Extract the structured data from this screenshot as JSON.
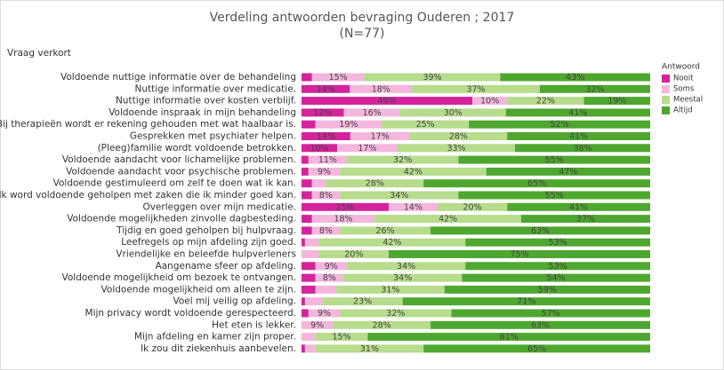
{
  "chart_data": {
    "type": "stacked_bar_horizontal",
    "title": "Verdeling antwoorden bevraging Ouderen ;  2017",
    "subtitle": "(N=77)",
    "y_label": "Vraag verkort",
    "legend_title": "Antwoord",
    "legend_position": "right",
    "categories": [
      "Voldoende nuttige informatie over de behandeling",
      "Nuttige informatie over medicatie.",
      "Nuttige informatie over kosten verblijf.",
      "Voldoende inspraak in mijn behandeling",
      "Bij therapieën wordt er rekening gehouden met wat haalbaar is.",
      "Gesprekken met psychiater helpen.",
      "(Pleeg)familie wordt voldoende betrokken.",
      "Voldoende aandacht voor lichamelijke problemen.",
      "Voldoende aandacht voor psychische problemen.",
      "Voldoende gestimuleerd om zelf te doen wat ik kan.",
      "Ik word voldoende geholpen met zaken die ik minder goed kan.",
      "Overleggen over mijn medicatie.",
      "Voldoende mogelijkheden zinvolle dagbesteding.",
      "Tijdig en goed geholpen bij hulpvraag.",
      "Leefregels op mijn afdeling zijn goed.",
      "Vriendelijke en beleefde hulpverleners",
      "Aangename sfeer op afdeling.",
      "Voldoende mogelijkheid om bezoek te ontvangen.",
      "Voldoende mogelijkheid om alleen te zijn.",
      "Voel mij veilig op afdeling.",
      "Mijn privacy wordt voldoende gerespecteerd.",
      "Het eten is lekker.",
      "Mijn afdeling en kamer zijn proper.",
      "Ik zou dit ziekenhuis aanbevelen."
    ],
    "series": [
      {
        "name": "Nooit",
        "color": "#d4239c",
        "values": [
          3,
          14,
          49,
          12,
          4,
          14,
          10,
          2,
          2,
          3,
          3,
          25,
          3,
          3,
          1,
          0,
          4,
          4,
          4,
          1,
          2,
          0,
          0,
          1
        ],
        "value_labels": [
          null,
          "14%",
          "49%",
          "12%",
          null,
          "14%",
          "10%",
          null,
          null,
          null,
          null,
          "25%",
          null,
          null,
          null,
          null,
          null,
          null,
          null,
          null,
          null,
          null,
          null,
          null
        ]
      },
      {
        "name": "Soms",
        "color": "#f4b6dd",
        "values": [
          15,
          18,
          10,
          16,
          19,
          17,
          17,
          11,
          9,
          4,
          8,
          14,
          18,
          8,
          4,
          5,
          9,
          8,
          6,
          5,
          9,
          9,
          4,
          3
        ],
        "value_labels": [
          "15%",
          "18%",
          "10%",
          "16%",
          "19%",
          "17%",
          "17%",
          "11%",
          "9%",
          null,
          "8%",
          "14%",
          "18%",
          "8%",
          null,
          null,
          "9%",
          "8%",
          null,
          null,
          "9%",
          "9%",
          null,
          null
        ]
      },
      {
        "name": "Meestal",
        "color": "#b6dc8c",
        "values": [
          39,
          37,
          22,
          30,
          25,
          28,
          33,
          32,
          42,
          28,
          34,
          20,
          42,
          26,
          42,
          20,
          34,
          34,
          31,
          23,
          32,
          28,
          15,
          31
        ],
        "value_labels": [
          "39%",
          "37%",
          "22%",
          "30%",
          "25%",
          "28%",
          "33%",
          "32%",
          "42%",
          "28%",
          "34%",
          "20%",
          "42%",
          "26%",
          "42%",
          "20%",
          "34%",
          "34%",
          "31%",
          "23%",
          "32%",
          "28%",
          "15%",
          "31%"
        ]
      },
      {
        "name": "Altijd",
        "color": "#4ea72e",
        "values": [
          43,
          32,
          19,
          41,
          52,
          41,
          38,
          55,
          47,
          65,
          55,
          41,
          37,
          63,
          53,
          75,
          53,
          54,
          59,
          71,
          57,
          63,
          81,
          65
        ],
        "value_labels": [
          "43%",
          "32%",
          "19%",
          "41%",
          "52%",
          "41%",
          "38%",
          "55%",
          "47%",
          "65%",
          "55%",
          "41%",
          "37%",
          "63%",
          "53%",
          "75%",
          "53%",
          "54%",
          "59%",
          "71%",
          "57%",
          "63%",
          "81%",
          "65%"
        ]
      }
    ]
  }
}
